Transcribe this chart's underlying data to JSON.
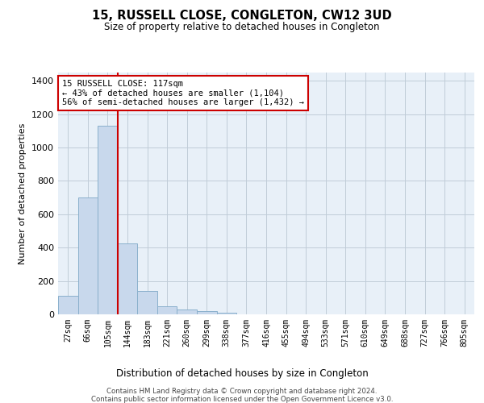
{
  "title": "15, RUSSELL CLOSE, CONGLETON, CW12 3UD",
  "subtitle": "Size of property relative to detached houses in Congleton",
  "xlabel": "Distribution of detached houses by size in Congleton",
  "ylabel": "Number of detached properties",
  "bar_labels": [
    "27sqm",
    "66sqm",
    "105sqm",
    "144sqm",
    "183sqm",
    "221sqm",
    "260sqm",
    "299sqm",
    "338sqm",
    "377sqm",
    "416sqm",
    "455sqm",
    "494sqm",
    "533sqm",
    "571sqm",
    "610sqm",
    "649sqm",
    "688sqm",
    "727sqm",
    "766sqm",
    "805sqm"
  ],
  "bar_values": [
    110,
    700,
    1130,
    425,
    140,
    50,
    30,
    18,
    10,
    0,
    0,
    0,
    0,
    0,
    0,
    0,
    0,
    0,
    0,
    0,
    0
  ],
  "bar_color": "#c8d8ec",
  "bar_edge_color": "#8ab0cc",
  "grid_color": "#c0ccd8",
  "background_color": "#e8f0f8",
  "vline_color": "#cc0000",
  "annotation_text": "15 RUSSELL CLOSE: 117sqm\n← 43% of detached houses are smaller (1,104)\n56% of semi-detached houses are larger (1,432) →",
  "ylim": [
    0,
    1450
  ],
  "yticks": [
    0,
    200,
    400,
    600,
    800,
    1000,
    1200,
    1400
  ],
  "footer_line1": "Contains HM Land Registry data © Crown copyright and database right 2024.",
  "footer_line2": "Contains public sector information licensed under the Open Government Licence v3.0."
}
